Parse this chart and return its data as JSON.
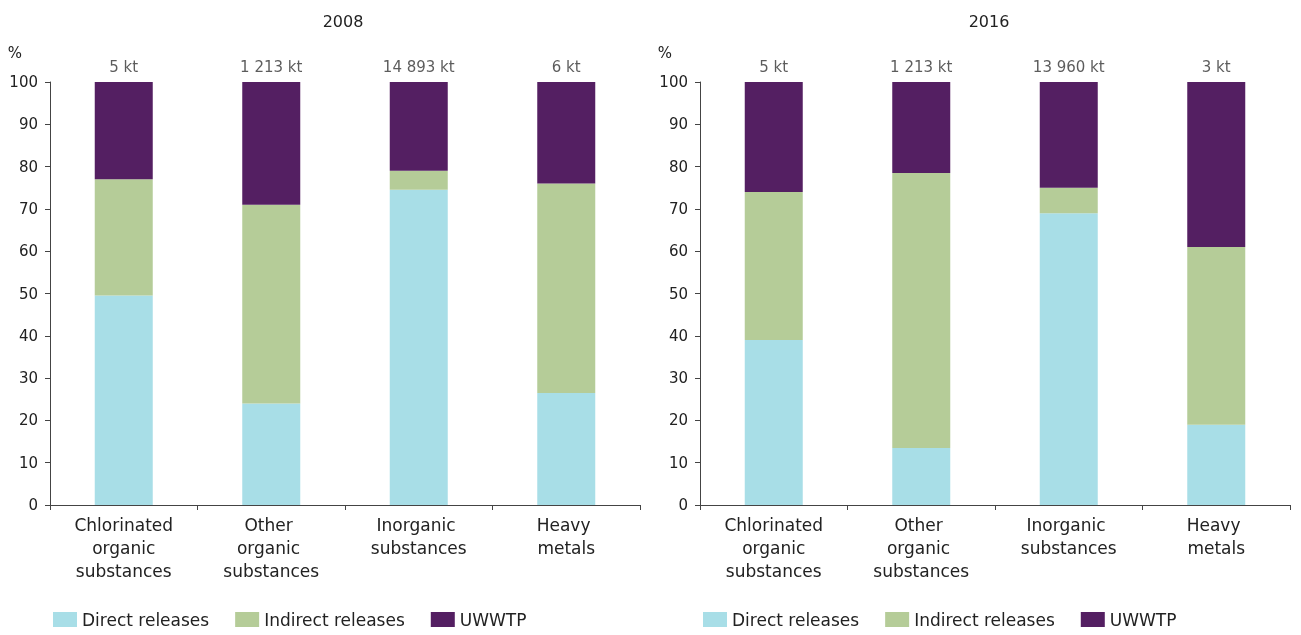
{
  "chart_data": [
    {
      "type": "bar",
      "title": "2008",
      "ylabel": "%",
      "stacked": true,
      "categories": [
        "Chlorinated organic substances",
        "Other organic substances",
        "Inorganic substances",
        "Heavy metals"
      ],
      "series": [
        {
          "name": "Direct releases",
          "color": "#a8dee7",
          "values": [
            49.5,
            24,
            74.5,
            26.5
          ]
        },
        {
          "name": "Indirect releases",
          "color": "#b5cc98",
          "values": [
            27.5,
            47,
            4.5,
            49.5
          ]
        },
        {
          "name": "UWWTP",
          "color": "#541f62",
          "values": [
            23,
            29,
            21,
            24
          ]
        }
      ],
      "annotations": [
        {
          "text": "5 kt",
          "x": "Chlorinated organic substances",
          "y": 100
        },
        {
          "text": "1 213 kt",
          "x": "Other organic substances",
          "y": 100
        },
        {
          "text": "14 893 kt",
          "x": "Inorganic substances",
          "y": 100
        },
        {
          "text": "6 kt",
          "x": "Heavy metals",
          "y": 100
        }
      ],
      "ylim": [
        0,
        100
      ],
      "yticks": [
        0,
        10,
        20,
        30,
        40,
        50,
        60,
        70,
        80,
        90,
        100
      ],
      "grid": false,
      "legend": "bottom left"
    },
    {
      "type": "bar",
      "title": "2016",
      "ylabel": "%",
      "stacked": true,
      "categories": [
        "Chlorinated organic substances",
        "Other organic substances",
        "Inorganic substances",
        "Heavy metals"
      ],
      "series": [
        {
          "name": "Direct releases",
          "color": "#a8dee7",
          "values": [
            39,
            13.5,
            69,
            19
          ]
        },
        {
          "name": "Indirect releases",
          "color": "#b5cc98",
          "values": [
            35,
            65,
            6,
            42
          ]
        },
        {
          "name": "UWWTP",
          "color": "#541f62",
          "values": [
            26,
            21.5,
            25,
            39
          ]
        }
      ],
      "annotations": [
        {
          "text": "5 kt",
          "x": "Chlorinated organic substances",
          "y": 100
        },
        {
          "text": "1 213 kt",
          "x": "Other organic substances",
          "y": 100
        },
        {
          "text": "13 960 kt",
          "x": "Inorganic substances",
          "y": 100
        },
        {
          "text": "3 kt",
          "x": "Heavy metals",
          "y": 100
        }
      ],
      "ylim": [
        0,
        100
      ],
      "yticks": [
        0,
        10,
        20,
        30,
        40,
        50,
        60,
        70,
        80,
        90,
        100
      ],
      "grid": false,
      "legend": "bottom left"
    }
  ]
}
